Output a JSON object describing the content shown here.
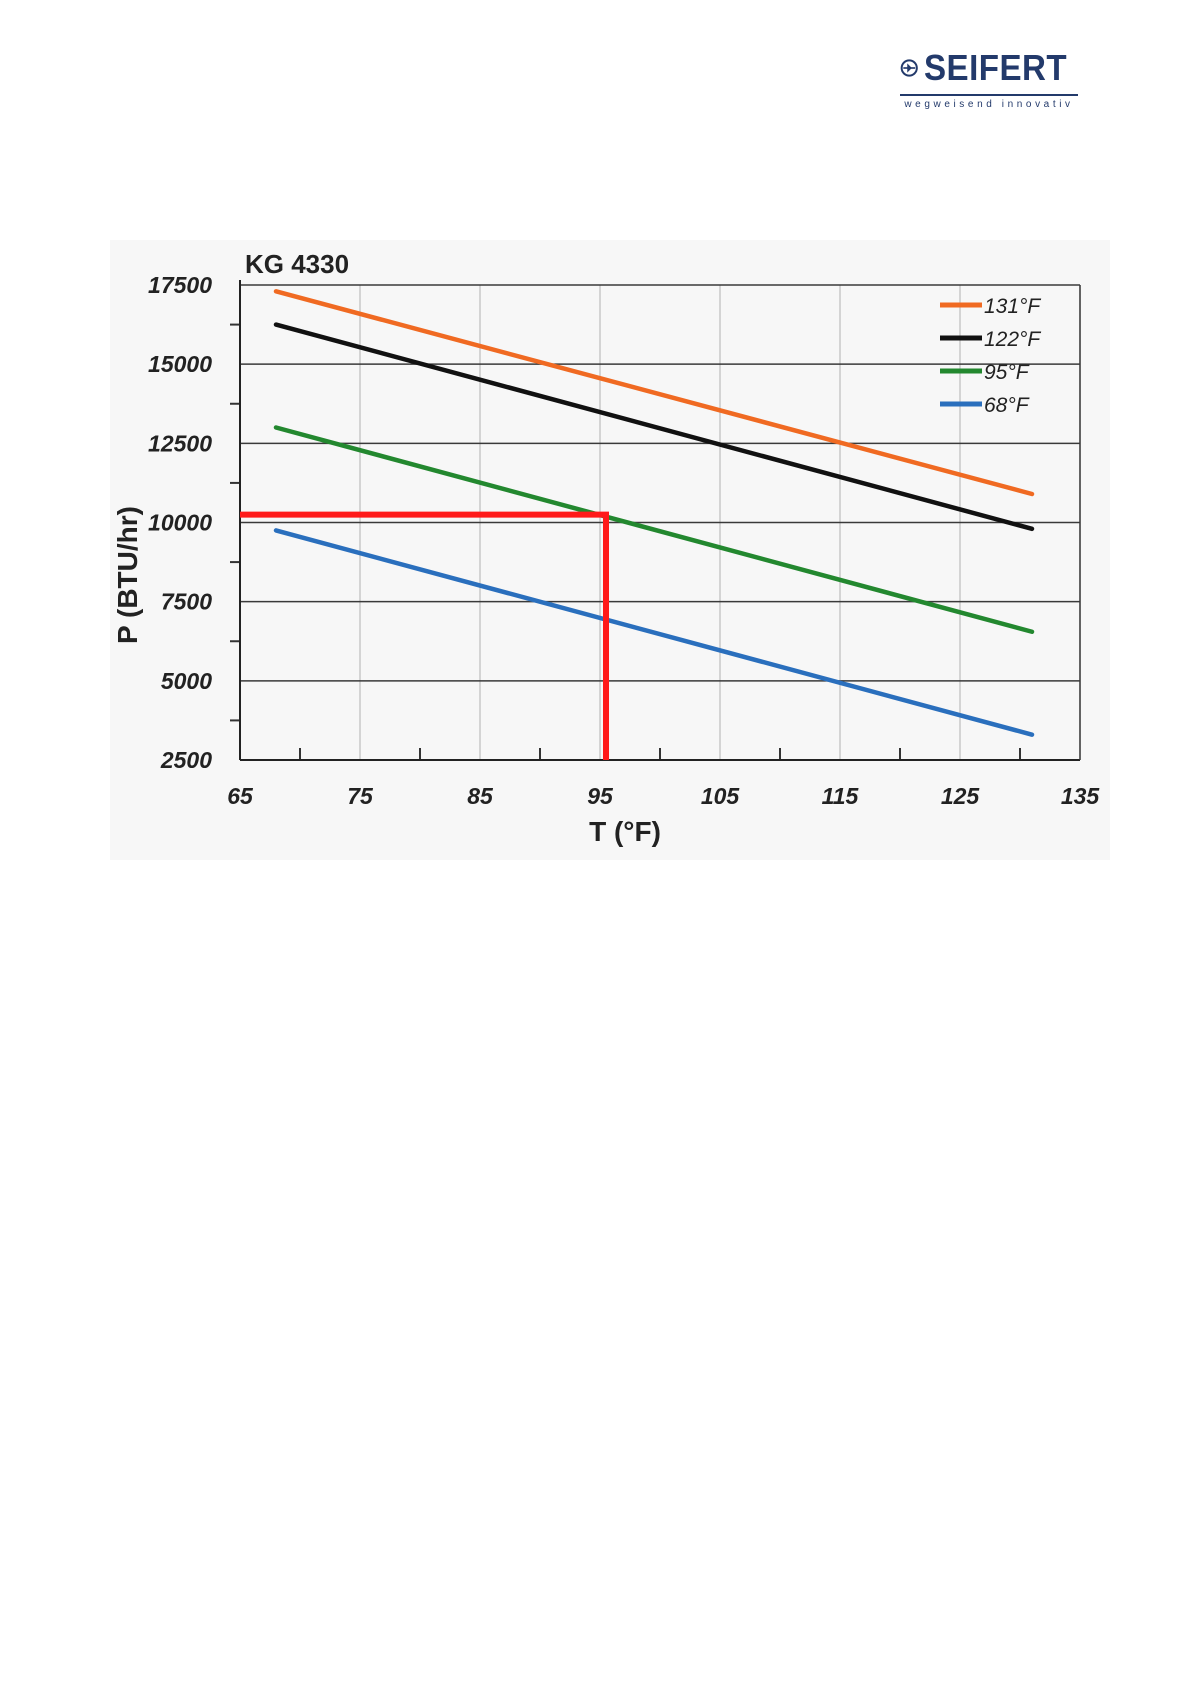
{
  "logo": {
    "brand": "SEIFERT",
    "tagline": "wegweisend innovativ",
    "color": "#233a6b"
  },
  "chart_data": {
    "type": "line",
    "title": "KG 4330",
    "xlabel": "T (°F)",
    "ylabel": "P (BTU/hr)",
    "xlim": [
      65,
      135
    ],
    "ylim": [
      2500,
      17500
    ],
    "xticks": [
      65,
      75,
      85,
      95,
      105,
      115,
      125,
      135
    ],
    "yticks": [
      2500,
      5000,
      7500,
      10000,
      12500,
      15000,
      17500
    ],
    "grid": true,
    "legend": "top-right",
    "series": [
      {
        "name": "131°F",
        "color": "#f06a22",
        "x": [
          68,
          131
        ],
        "y": [
          17300,
          10900
        ]
      },
      {
        "name": "122°F",
        "color": "#111111",
        "x": [
          68,
          131
        ],
        "y": [
          16250,
          9800
        ]
      },
      {
        "name": "95°F",
        "color": "#23882f",
        "x": [
          68,
          131
        ],
        "y": [
          13000,
          6550
        ]
      },
      {
        "name": "68°F",
        "color": "#2a6fbd",
        "x": [
          68,
          131
        ],
        "y": [
          9750,
          3300
        ]
      }
    ],
    "annotation": {
      "color": "#ff1a1a",
      "x": 95.5,
      "y": 10250
    }
  }
}
